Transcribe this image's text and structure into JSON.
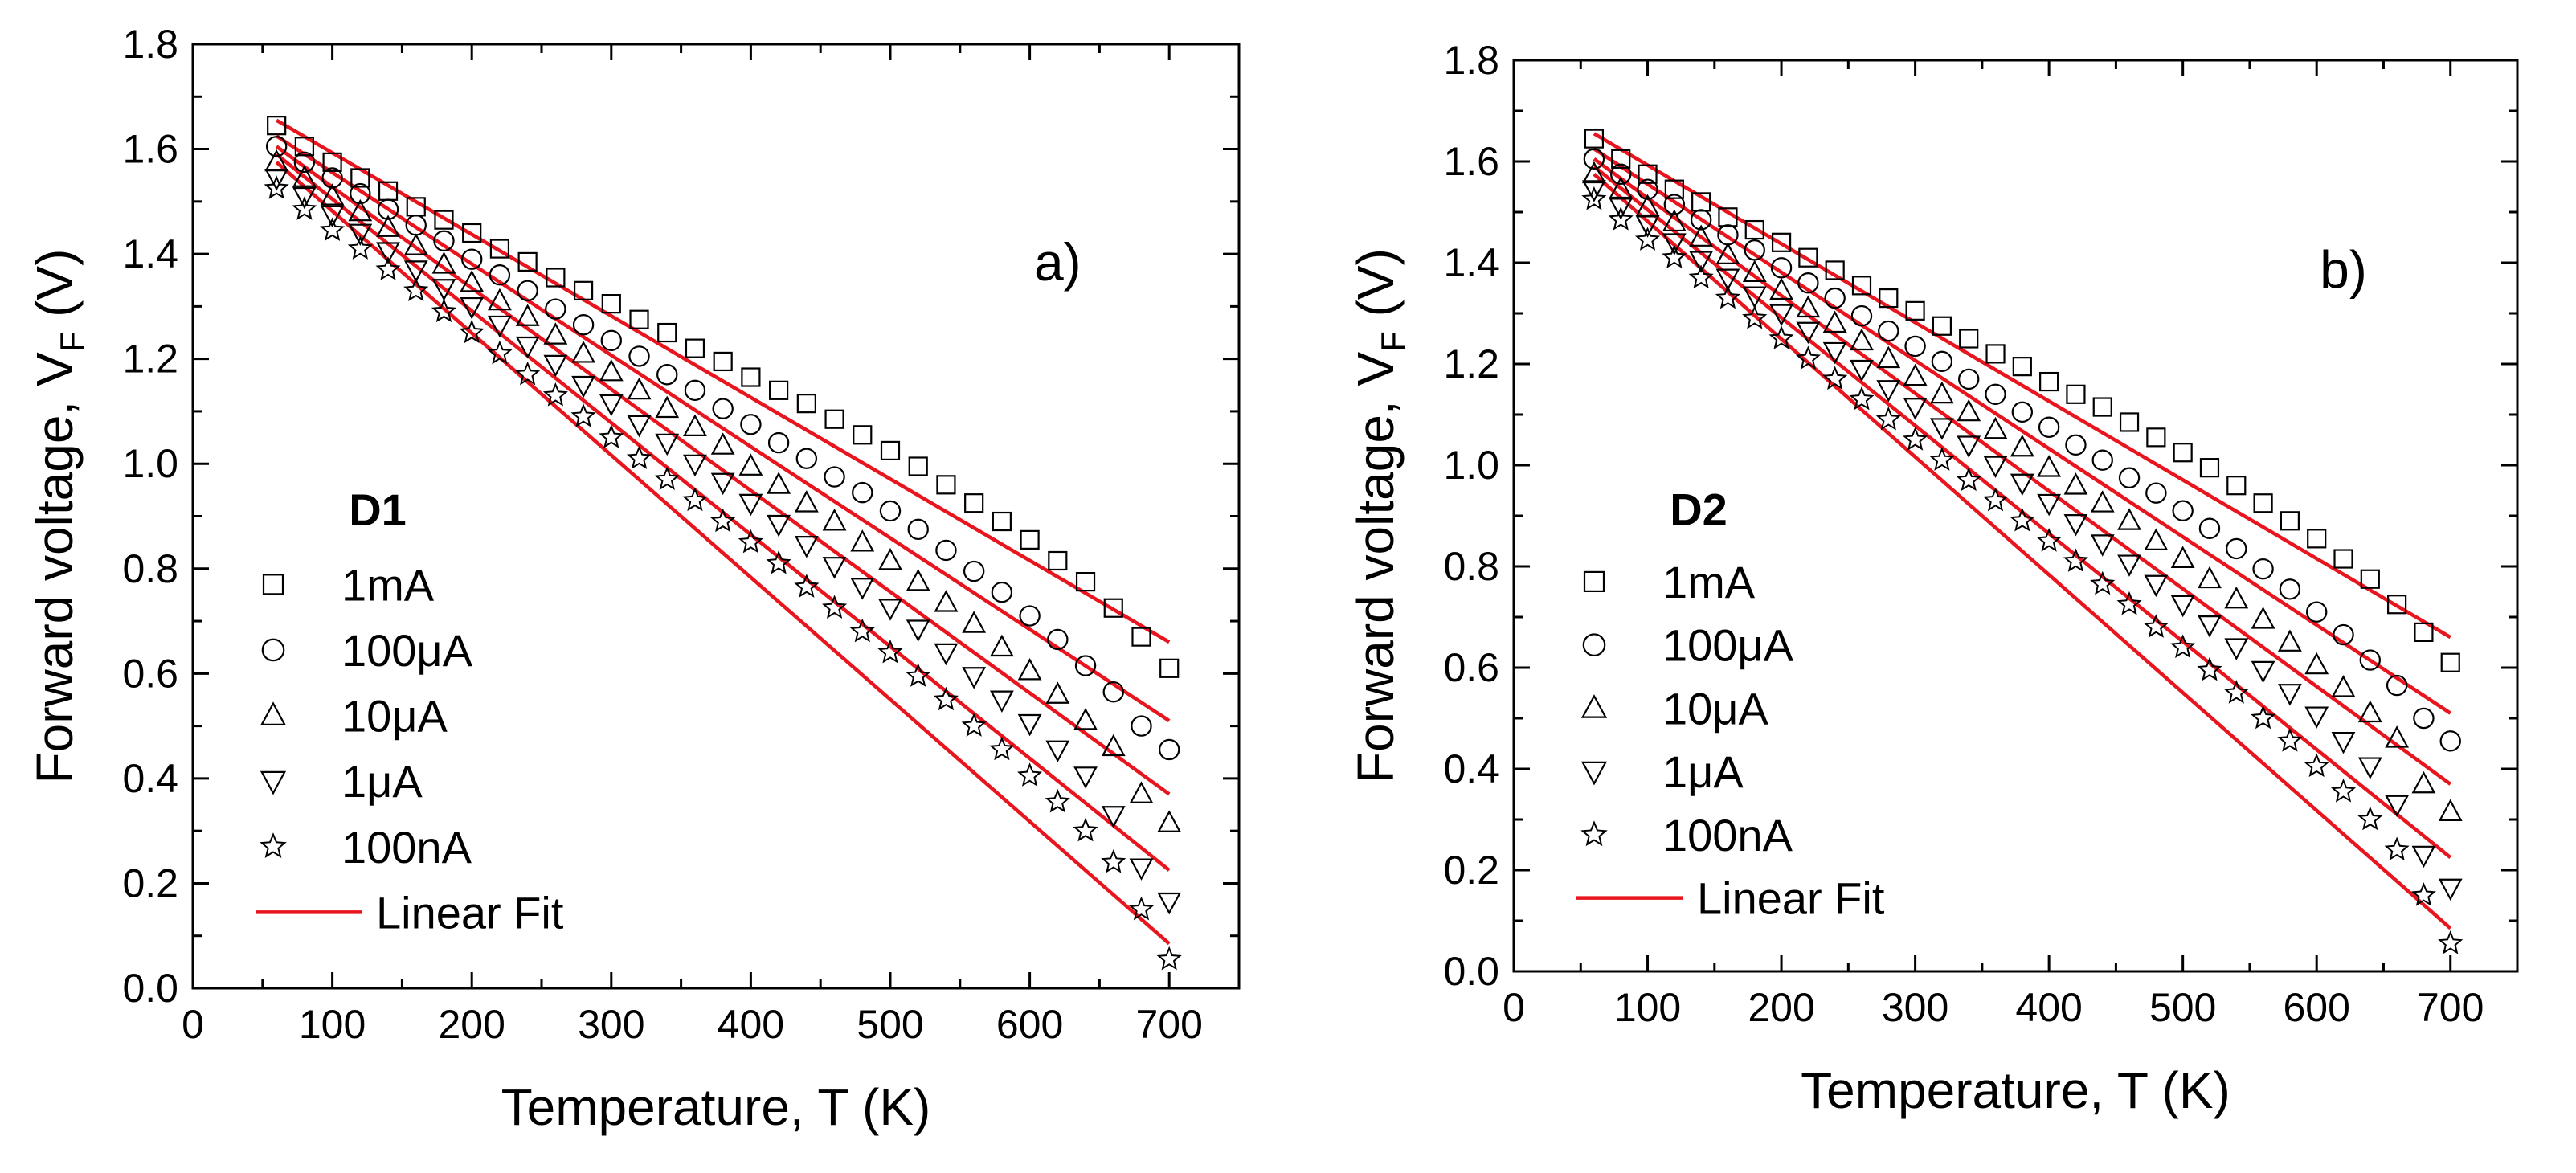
{
  "chart_data": [
    {
      "type": "scatter",
      "panel_label": "a)",
      "device_label": "D1",
      "xlabel": "Temperature, T (K)",
      "ylabel": {
        "main": "Forward voltage, V",
        "sub": "F",
        "unit": " (V)"
      },
      "xlim": [
        0,
        750
      ],
      "ylim": [
        0,
        1.8
      ],
      "x_ticks": [
        0,
        100,
        200,
        300,
        400,
        500,
        600,
        700
      ],
      "y_ticks": [
        "0.0",
        "0.2",
        "0.4",
        "0.6",
        "0.8",
        "1.0",
        "1.2",
        "1.4",
        "1.6",
        "1.8"
      ],
      "legend_position": "lower-left",
      "fit_label": "Linear Fit",
      "fit_color": "#e8141e",
      "x": [
        60,
        80,
        100,
        120,
        140,
        160,
        180,
        200,
        220,
        240,
        260,
        280,
        300,
        320,
        340,
        360,
        380,
        400,
        420,
        440,
        460,
        480,
        500,
        520,
        540,
        560,
        580,
        600,
        620,
        640,
        660,
        680,
        700
      ],
      "series": [
        {
          "name": "1mA",
          "marker": "square",
          "values": [
            1.645,
            1.605,
            1.575,
            1.545,
            1.52,
            1.49,
            1.465,
            1.44,
            1.41,
            1.385,
            1.355,
            1.33,
            1.305,
            1.275,
            1.25,
            1.22,
            1.195,
            1.165,
            1.14,
            1.115,
            1.085,
            1.055,
            1.025,
            0.995,
            0.96,
            0.925,
            0.89,
            0.855,
            0.815,
            0.775,
            0.725,
            0.67,
            0.61
          ],
          "fit": [
            1.655,
            0.66
          ]
        },
        {
          "name": "100μA",
          "marker": "circle",
          "values": [
            1.605,
            1.575,
            1.545,
            1.515,
            1.485,
            1.455,
            1.425,
            1.39,
            1.36,
            1.33,
            1.295,
            1.265,
            1.235,
            1.205,
            1.17,
            1.14,
            1.105,
            1.075,
            1.04,
            1.01,
            0.975,
            0.945,
            0.91,
            0.875,
            0.835,
            0.795,
            0.755,
            0.71,
            0.665,
            0.615,
            0.565,
            0.5,
            0.455
          ],
          "fit": [
            1.625,
            0.51
          ]
        },
        {
          "name": "10μA",
          "marker": "triangle-up",
          "values": [
            1.575,
            1.545,
            1.51,
            1.48,
            1.45,
            1.415,
            1.38,
            1.345,
            1.31,
            1.28,
            1.245,
            1.21,
            1.175,
            1.14,
            1.105,
            1.07,
            1.035,
            0.995,
            0.96,
            0.925,
            0.89,
            0.85,
            0.815,
            0.775,
            0.735,
            0.695,
            0.65,
            0.605,
            0.56,
            0.51,
            0.46,
            0.37,
            0.315
          ],
          "fit": [
            1.605,
            0.37
          ]
        },
        {
          "name": "1μA",
          "marker": "triangle-down",
          "values": [
            1.545,
            1.51,
            1.475,
            1.44,
            1.405,
            1.37,
            1.335,
            1.3,
            1.265,
            1.225,
            1.19,
            1.15,
            1.115,
            1.075,
            1.04,
            1.0,
            0.965,
            0.925,
            0.885,
            0.845,
            0.805,
            0.765,
            0.725,
            0.685,
            0.64,
            0.595,
            0.55,
            0.505,
            0.455,
            0.405,
            0.33,
            0.23,
            0.165
          ],
          "fit": [
            1.59,
            0.225
          ]
        },
        {
          "name": "100nA",
          "marker": "star",
          "values": [
            1.525,
            1.485,
            1.445,
            1.41,
            1.37,
            1.33,
            1.29,
            1.25,
            1.21,
            1.17,
            1.13,
            1.09,
            1.05,
            1.01,
            0.97,
            0.93,
            0.89,
            0.85,
            0.81,
            0.765,
            0.725,
            0.68,
            0.64,
            0.595,
            0.55,
            0.5,
            0.455,
            0.405,
            0.355,
            0.3,
            0.24,
            0.15,
            0.055
          ],
          "fit": [
            1.575,
            0.085
          ]
        }
      ]
    },
    {
      "type": "scatter",
      "panel_label": "b)",
      "device_label": "D2",
      "xlabel": "Temperature, T (K)",
      "ylabel": {
        "main": "Forward voltage, V",
        "sub": "F",
        "unit": " (V)"
      },
      "xlim": [
        0,
        750
      ],
      "ylim": [
        0,
        1.8
      ],
      "x_ticks": [
        0,
        100,
        200,
        300,
        400,
        500,
        600,
        700
      ],
      "y_ticks": [
        "0.0",
        "0.2",
        "0.4",
        "0.6",
        "0.8",
        "1.0",
        "1.2",
        "1.4",
        "1.6",
        "1.8"
      ],
      "legend_position": "lower-left",
      "fit_label": "Linear Fit",
      "fit_color": "#e8141e",
      "x": [
        60,
        80,
        100,
        120,
        140,
        160,
        180,
        200,
        220,
        240,
        260,
        280,
        300,
        320,
        340,
        360,
        380,
        400,
        420,
        440,
        460,
        480,
        500,
        520,
        540,
        560,
        580,
        600,
        620,
        640,
        660,
        680,
        700
      ],
      "series": [
        {
          "name": "1mA",
          "marker": "square",
          "values": [
            1.645,
            1.605,
            1.575,
            1.545,
            1.52,
            1.49,
            1.465,
            1.44,
            1.41,
            1.385,
            1.355,
            1.33,
            1.305,
            1.275,
            1.25,
            1.22,
            1.195,
            1.165,
            1.14,
            1.115,
            1.085,
            1.055,
            1.025,
            0.995,
            0.96,
            0.925,
            0.89,
            0.855,
            0.815,
            0.775,
            0.725,
            0.67,
            0.61
          ],
          "fit": [
            1.655,
            0.66
          ]
        },
        {
          "name": "100μA",
          "marker": "circle",
          "values": [
            1.605,
            1.575,
            1.545,
            1.515,
            1.485,
            1.455,
            1.425,
            1.39,
            1.36,
            1.33,
            1.295,
            1.265,
            1.235,
            1.205,
            1.17,
            1.14,
            1.105,
            1.075,
            1.04,
            1.01,
            0.975,
            0.945,
            0.91,
            0.875,
            0.835,
            0.795,
            0.755,
            0.71,
            0.665,
            0.615,
            0.565,
            0.5,
            0.455
          ],
          "fit": [
            1.625,
            0.51
          ]
        },
        {
          "name": "10μA",
          "marker": "triangle-up",
          "values": [
            1.575,
            1.545,
            1.51,
            1.48,
            1.45,
            1.415,
            1.38,
            1.345,
            1.31,
            1.28,
            1.245,
            1.21,
            1.175,
            1.14,
            1.105,
            1.07,
            1.035,
            0.995,
            0.96,
            0.925,
            0.89,
            0.85,
            0.815,
            0.775,
            0.735,
            0.695,
            0.65,
            0.605,
            0.56,
            0.51,
            0.46,
            0.37,
            0.315
          ],
          "fit": [
            1.605,
            0.37
          ]
        },
        {
          "name": "1μA",
          "marker": "triangle-down",
          "values": [
            1.545,
            1.51,
            1.475,
            1.44,
            1.405,
            1.37,
            1.335,
            1.3,
            1.265,
            1.225,
            1.19,
            1.15,
            1.115,
            1.075,
            1.04,
            1.0,
            0.965,
            0.925,
            0.885,
            0.845,
            0.805,
            0.765,
            0.725,
            0.685,
            0.64,
            0.595,
            0.55,
            0.505,
            0.455,
            0.405,
            0.33,
            0.23,
            0.165
          ],
          "fit": [
            1.59,
            0.225
          ]
        },
        {
          "name": "100nA",
          "marker": "star",
          "values": [
            1.525,
            1.485,
            1.445,
            1.41,
            1.37,
            1.33,
            1.29,
            1.25,
            1.21,
            1.17,
            1.13,
            1.09,
            1.05,
            1.01,
            0.97,
            0.93,
            0.89,
            0.85,
            0.81,
            0.765,
            0.725,
            0.68,
            0.64,
            0.595,
            0.55,
            0.5,
            0.455,
            0.405,
            0.355,
            0.3,
            0.24,
            0.15,
            0.055
          ],
          "fit": [
            1.575,
            0.085
          ]
        }
      ]
    }
  ]
}
